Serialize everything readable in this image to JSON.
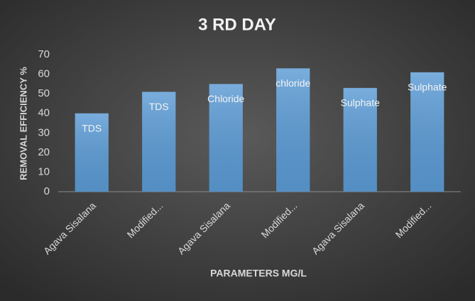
{
  "chart_data": {
    "type": "bar",
    "title": "3 RD DAY",
    "y_label": "REMOVAL EFFICIENCY %",
    "x_label": "PARAMETERS MG/L",
    "categories": [
      "Agava Sisalana",
      "Modified...",
      "Agava Sisalana",
      "Modified...",
      "Agava Sisalana",
      "Modified..."
    ],
    "values": [
      40,
      51,
      55,
      63,
      53,
      61
    ],
    "bar_labels": [
      "TDS",
      "TDS",
      "Chloride",
      "chloride",
      "Sulphate",
      "Sulphate"
    ],
    "color": "#5b9bd5",
    "ylim": [
      0,
      70
    ],
    "yticks": [
      0,
      10,
      20,
      30,
      40,
      50,
      60,
      70
    ],
    "grid": false
  }
}
